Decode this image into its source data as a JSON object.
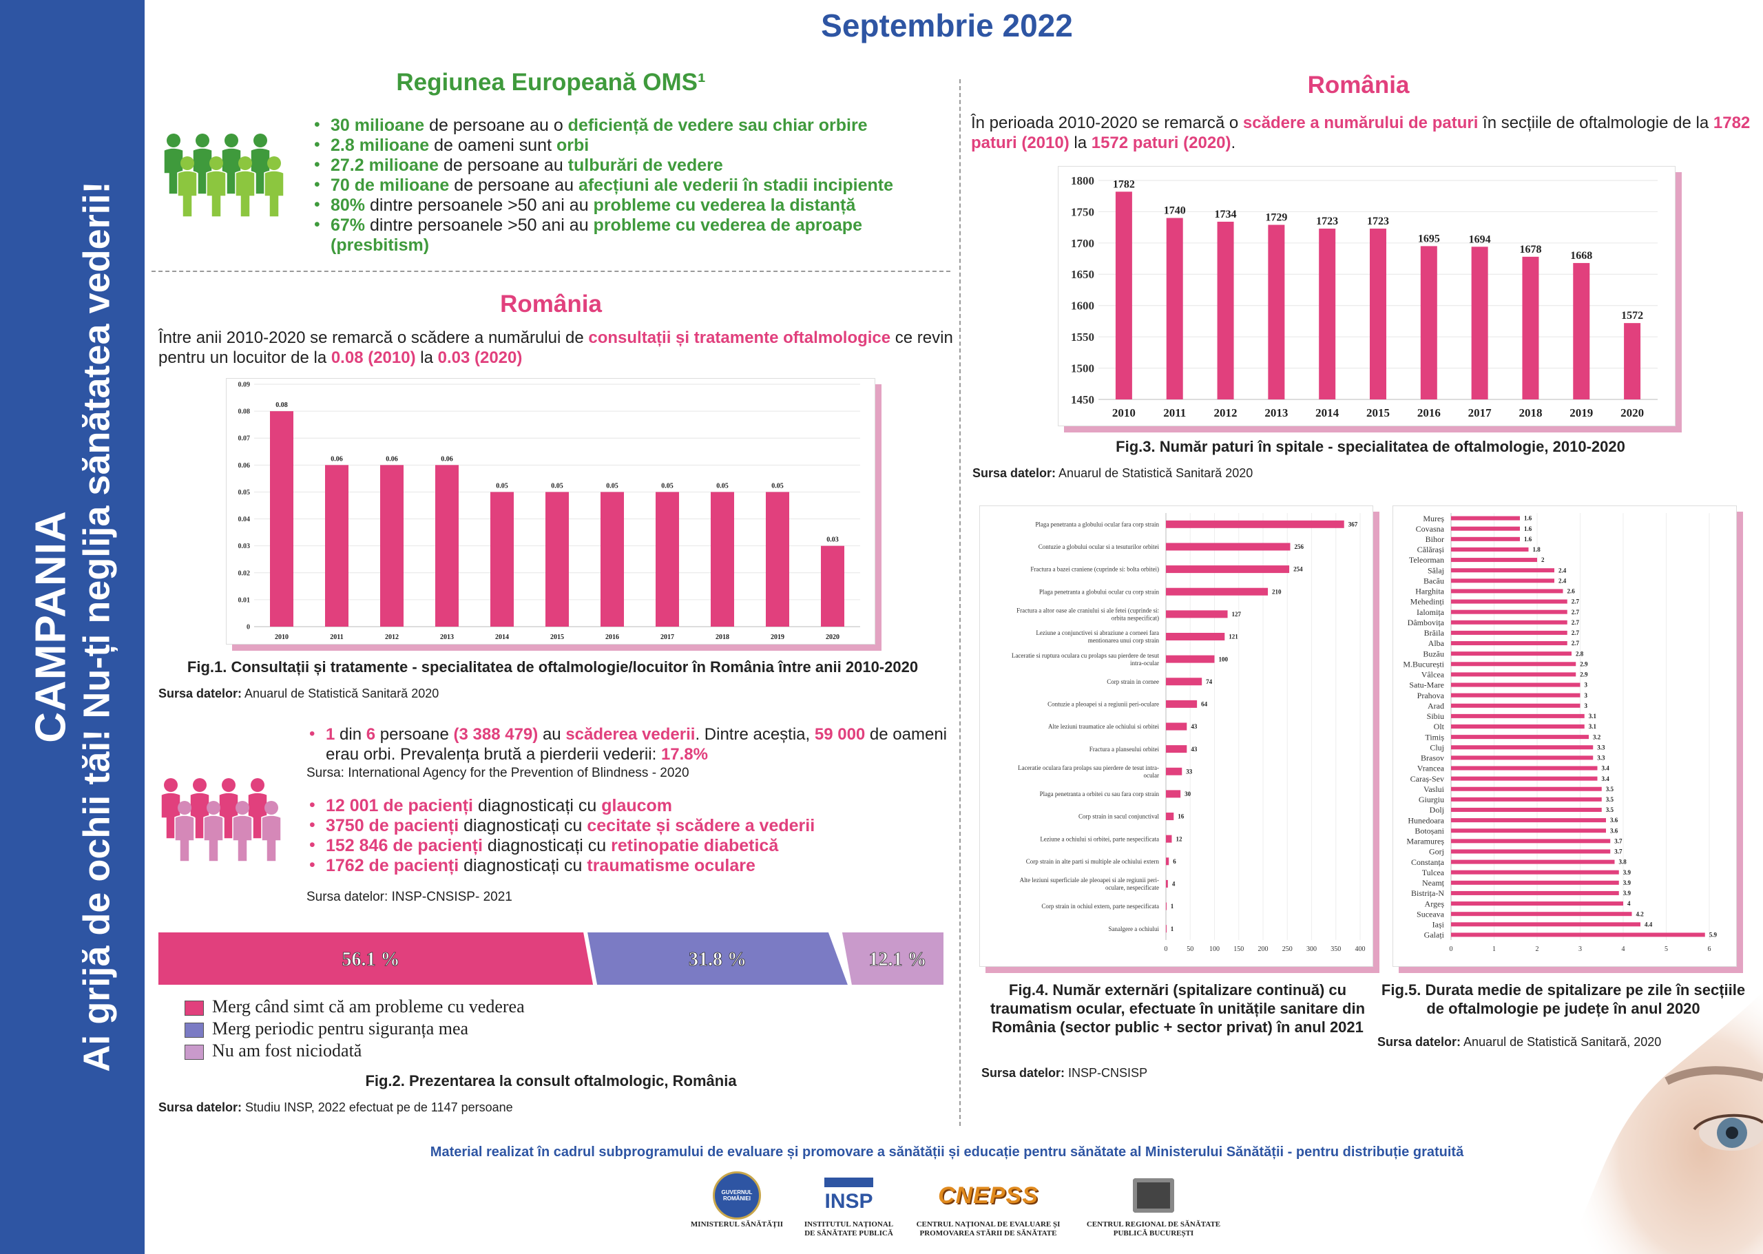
{
  "sidebar": {
    "line1": "CAMPANIA",
    "line2": "Ai grijă de ochii tăi! Nu-ți neglija sănătatea vederii!"
  },
  "title": "Septembrie 2022",
  "europe": {
    "heading": "Regiunea Europeană OMS¹",
    "bullets": [
      [
        [
          "30 milioane",
          "g"
        ],
        [
          " de persoane au o ",
          ""
        ],
        [
          "deficiență de vedere sau chiar orbire",
          "g"
        ]
      ],
      [
        [
          "2.8 milioane",
          "g"
        ],
        [
          " de oameni sunt ",
          ""
        ],
        [
          "orbi",
          "g"
        ]
      ],
      [
        [
          "27.2 milioane",
          "g"
        ],
        [
          " de persoane au ",
          ""
        ],
        [
          "tulburări de vedere",
          "g"
        ]
      ],
      [
        [
          "70 de milioane",
          "g"
        ],
        [
          " de persoane au ",
          ""
        ],
        [
          "afecțiuni ale vederii în stadii incipiente",
          "g"
        ]
      ],
      [
        [
          "80%",
          "g"
        ],
        [
          " dintre persoanele >50 ani au ",
          ""
        ],
        [
          "probleme cu vederea la distanță",
          "g"
        ]
      ],
      [
        [
          "67%",
          "g"
        ],
        [
          " dintre persoanele >50 ani au ",
          ""
        ],
        [
          "probleme cu vederea de aproape (presbitism)",
          "g"
        ]
      ]
    ]
  },
  "romania_consult": {
    "heading": "România",
    "intro": [
      [
        "Între anii 2010-2020 se remarcă o scădere a numărului de ",
        ""
      ],
      [
        "consultații și tratamente oftalmologice",
        "p"
      ],
      [
        " ce revin pentru un locuitor de la ",
        ""
      ],
      [
        "0.08 (2010)",
        "p"
      ],
      [
        " la ",
        ""
      ],
      [
        "0.03 (2020)",
        "p"
      ]
    ],
    "caption": "Fig.1. Consultații și tratamente - specialitatea de oftalmologie/locuitor în România între anii 2010-2020",
    "source_label": "Sursa datelor:",
    "source": " Anuarul de Statistică Sanitară 2020"
  },
  "romania_beds": {
    "heading": "România",
    "intro": [
      [
        "În perioada 2010-2020 se remarcă o ",
        ""
      ],
      [
        "scădere a numărului de paturi",
        "p"
      ],
      [
        " în secțiile de oftalmologie de la ",
        ""
      ],
      [
        "1782 paturi (2010)",
        "p"
      ],
      [
        " la ",
        ""
      ],
      [
        "1572 paturi (2020)",
        "p"
      ],
      [
        ".",
        ""
      ]
    ],
    "caption": "Fig.3. Număr paturi în spitale - specialitatea de oftalmologie, 2010-2020",
    "source_label": "Sursa datelor:",
    "source": " Anuarul de Statistică Sanitară 2020"
  },
  "prevalence": {
    "line": [
      [
        "1",
        "p"
      ],
      [
        " din ",
        ""
      ],
      [
        "6",
        "p"
      ],
      [
        " persoane ",
        ""
      ],
      [
        "(3 388 479)",
        "p"
      ],
      [
        " au ",
        ""
      ],
      [
        "scăderea vederii",
        "p"
      ],
      [
        ". Dintre aceștia, ",
        ""
      ],
      [
        "59 000",
        "p"
      ],
      [
        " de oameni erau orbi. Prevalența brută a pierderii vederii: ",
        ""
      ],
      [
        "17.8%",
        "p"
      ]
    ],
    "source": "Sursa: International Agency for the Prevention of Blindness - 2020",
    "patients": [
      [
        [
          "12 001 de pacienți",
          "p"
        ],
        [
          " diagnosticați cu ",
          ""
        ],
        [
          "glaucom",
          "p"
        ]
      ],
      [
        [
          "3750 de pacienți",
          "p"
        ],
        [
          " diagnosticați cu ",
          ""
        ],
        [
          "cecitate și scădere a vederii",
          "p"
        ]
      ],
      [
        [
          "152 846 de pacienți",
          "p"
        ],
        [
          " diagnosticați cu ",
          ""
        ],
        [
          "retinopatie diabetică",
          "p"
        ]
      ],
      [
        [
          "1762 de pacienți",
          "p"
        ],
        [
          " diagnosticați cu ",
          ""
        ],
        [
          "traumatisme oculare",
          "p"
        ]
      ]
    ],
    "source2": "Sursa datelor: INSP-CNSISP- 2021"
  },
  "fig2": {
    "caption": "Fig.2. Prezentarea la consult oftalmologic, România",
    "source_label": "Sursa datelor:",
    "source": " Studiu INSP, 2022 efectuat pe de 1147 persoane"
  },
  "fig4": {
    "caption": "Fig.4. Număr externări (spitalizare continuă) cu traumatism ocular, efectuate în unitățile sanitare din România (sector public + sector privat) în anul 2021",
    "source_label": "Sursa datelor:",
    "source": " INSP-CNSISP"
  },
  "fig5": {
    "caption": "Fig.5. Durata medie de spitalizare pe zile în secțiile de oftalmologie pe județe în anul 2020",
    "source_label": "Sursa datelor:",
    "source": " Anuarul de Statistică Sanitară, 2020"
  },
  "footer": {
    "text": "Material realizat în cadrul subprogramului de evaluare și promovare a sănătății și educație pentru sănătate al Ministerului Sănătății - pentru distribuție gratuită",
    "logos": [
      {
        "caption": "MINISTERUL SĂNĂTĂȚII",
        "mark": "GUVERNUL ROMÂNIEI"
      },
      {
        "caption": "INSTITUTUL NAȚIONAL DE SĂNĂTATE PUBLICĂ",
        "mark": "INSP"
      },
      {
        "caption": "CENTRUL NAȚIONAL DE EVALUARE ȘI PROMOVAREA STĂRII DE SĂNĂTATE",
        "mark": "CNEPSS"
      },
      {
        "caption": "CENTRUL REGIONAL DE SĂNĂTATE PUBLICĂ BUCUREȘTI",
        "mark": ""
      }
    ]
  },
  "colors": {
    "blue": "#2e55a3",
    "green": "#3f9a3c",
    "pink": "#e1407d",
    "purple": "#7b7bc4",
    "lilac": "#c99acb"
  },
  "chart_data": [
    {
      "id": "fig1",
      "type": "bar",
      "categories": [
        "2010",
        "2011",
        "2012",
        "2013",
        "2014",
        "2015",
        "2016",
        "2017",
        "2018",
        "2019",
        "2020"
      ],
      "values": [
        0.08,
        0.06,
        0.06,
        0.06,
        0.05,
        0.05,
        0.05,
        0.05,
        0.05,
        0.05,
        0.03
      ],
      "ylim": [
        0,
        0.09
      ],
      "yticks": [
        "0",
        "0.01",
        "0.02",
        "0.03",
        "0.04",
        "0.05",
        "0.06",
        "0.07",
        "0.08",
        "0.09"
      ]
    },
    {
      "id": "fig3",
      "type": "bar",
      "categories": [
        "2010",
        "2011",
        "2012",
        "2013",
        "2014",
        "2015",
        "2016",
        "2017",
        "2018",
        "2019",
        "2020"
      ],
      "values": [
        1782,
        1740,
        1734,
        1729,
        1723,
        1723,
        1695,
        1694,
        1678,
        1668,
        1572
      ],
      "ylim": [
        1450,
        1800
      ],
      "yticks": [
        "1450",
        "1500",
        "1550",
        "1600",
        "1650",
        "1700",
        "1750",
        "1800"
      ]
    },
    {
      "id": "fig2",
      "type": "bar",
      "categories": [
        "Merg când simt că am probleme cu vederea",
        "Merg periodic pentru siguranța mea",
        "Nu am fost niciodată"
      ],
      "values": [
        56.1,
        31.8,
        12.1
      ],
      "labels": [
        "56.1 %",
        "31.8 %",
        "12.1 %"
      ],
      "colors": [
        "#e1407d",
        "#7b7bc4",
        "#c99acb"
      ]
    },
    {
      "id": "fig4",
      "type": "bar",
      "orientation": "horizontal",
      "categories": [
        [
          "Plaga penetranta a globului ocular fara corp strain"
        ],
        [
          "Contuzie a globului ocular si a tesuturilor orbitei"
        ],
        [
          "Fractura a bazei craniene (cuprinde si: bolta orbitei)"
        ],
        [
          "Plaga penetranta a globului ocular cu corp strain"
        ],
        [
          "Fractura a altor oase ale craniului si ale fetei (cuprinde si:",
          "orbita nespecificat)"
        ],
        [
          "Leziune a conjunctivei si abraziune a corneei fara",
          "mentionarea unui corp strain"
        ],
        [
          "Laceratie si ruptura oculara cu prolaps sau pierdere de tesut",
          "intra-ocular"
        ],
        [
          "Corp strain in cornee"
        ],
        [
          "Contuzie a pleoapei si a regiunii peri-oculare"
        ],
        [
          "Alte leziuni traumatice ale ochiului si orbitei"
        ],
        [
          "Fractura a planseului orbitei"
        ],
        [
          "Laceratie oculara fara prolaps sau pierdere de tesut intra-",
          "ocular"
        ],
        [
          "Plaga penetranta a orbitei cu sau fara corp strain"
        ],
        [
          "Corp strain in sacul conjunctival"
        ],
        [
          "Leziune a ochiului si orbitei, parte nespecificata"
        ],
        [
          "Corp strain in alte parti si multiple ale ochiului extern"
        ],
        [
          "Alte leziuni superficiale ale pleoapei si ale regiunii peri-",
          "oculare, nespecificate"
        ],
        [
          "Corp strain in ochiul extern, parte nespecificata"
        ],
        [
          "Sanalgere a ochiului"
        ]
      ],
      "values": [
        367,
        256,
        254,
        210,
        127,
        121,
        100,
        74,
        64,
        43,
        43,
        33,
        30,
        16,
        12,
        6,
        4,
        1,
        1
      ],
      "xlim": [
        0,
        400
      ],
      "xticks": [
        "0",
        "50",
        "100",
        "150",
        "200",
        "250",
        "300",
        "350",
        "400"
      ]
    },
    {
      "id": "fig5",
      "type": "bar",
      "orientation": "horizontal",
      "categories": [
        "Mureș",
        "Covasna",
        "Bihor",
        "Călărași",
        "Teleorman",
        "Sălaj",
        "Bacău",
        "Harghita",
        "Mehedinți",
        "Ialomița",
        "Dâmbovița",
        "Brăila",
        "Alba",
        "Buzău",
        "M.București",
        "Vâlcea",
        "Satu-Mare",
        "Prahova",
        "Arad",
        "Sibiu",
        "Olt",
        "Timiș",
        "Cluj",
        "Brasov",
        "Vrancea",
        "Caraș-Sev",
        "Vaslui",
        "Giurgiu",
        "Dolj",
        "Hunedoara",
        "Botoșani",
        "Maramureș",
        "Gorj",
        "Constanța",
        "Tulcea",
        "Neamț",
        "Bistrița-N",
        "Argeș",
        "Suceava",
        "Iași",
        "Galați"
      ],
      "values": [
        1.6,
        1.6,
        1.6,
        1.8,
        2,
        2.4,
        2.4,
        2.6,
        2.7,
        2.7,
        2.7,
        2.7,
        2.7,
        2.8,
        2.9,
        2.9,
        3,
        3,
        3,
        3.1,
        3.1,
        3.2,
        3.3,
        3.3,
        3.4,
        3.4,
        3.5,
        3.5,
        3.5,
        3.6,
        3.6,
        3.7,
        3.7,
        3.8,
        3.9,
        3.9,
        3.9,
        4,
        4.2,
        4.4,
        5.9
      ],
      "xlim": [
        0,
        6
      ],
      "xticks": [
        "0",
        "1",
        "2",
        "3",
        "4",
        "5",
        "6"
      ]
    }
  ]
}
